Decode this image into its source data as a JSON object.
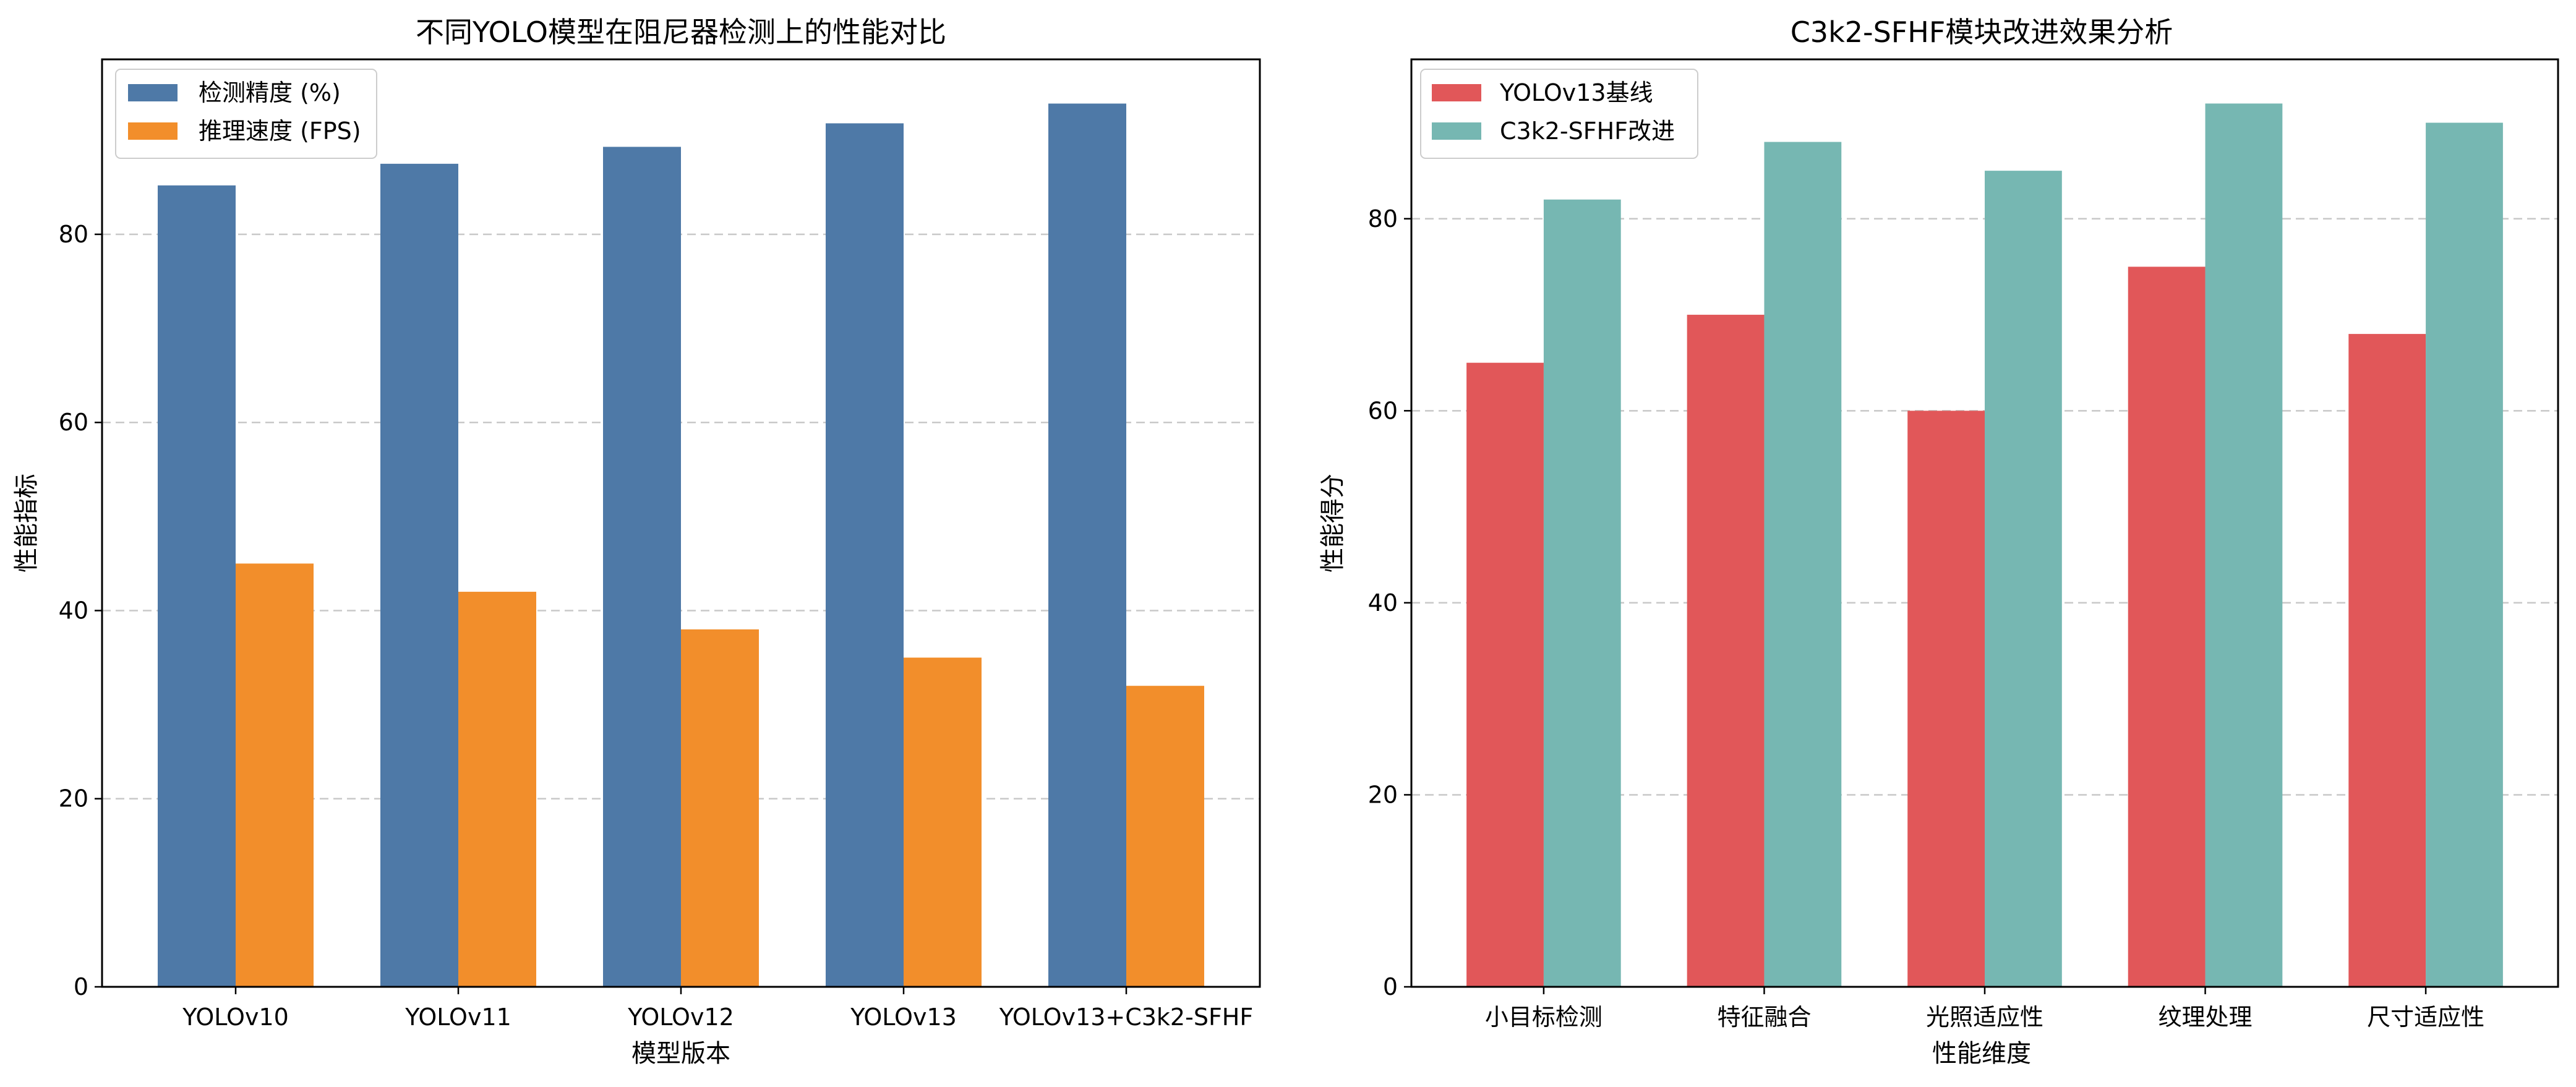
{
  "chart_data": [
    {
      "type": "bar",
      "title": "不同YOLO模型在阻尼器检测上的性能对比",
      "xlabel": "模型版本",
      "ylabel": "性能指标",
      "categories": [
        "YOLOv10",
        "YOLOv11",
        "YOLOv12",
        "YOLOv13",
        "YOLOv13+C3k2-SFHF"
      ],
      "series": [
        {
          "name": "检测精度 (%)",
          "color": "#4e79a7",
          "values": [
            85.2,
            87.5,
            89.3,
            91.8,
            93.9
          ]
        },
        {
          "name": "推理速度 (FPS)",
          "color": "#f28e2b",
          "values": [
            45,
            42,
            38,
            35,
            32
          ]
        }
      ],
      "ylim": [
        0,
        98.6
      ],
      "yticks": [
        0,
        20,
        40,
        60,
        80
      ],
      "grid": "y-dashed",
      "legend": "top-left"
    },
    {
      "type": "bar",
      "title": "C3k2-SFHF模块改进效果分析",
      "xlabel": "性能维度",
      "ylabel": "性能得分",
      "categories": [
        "小目标检测",
        "特征融合",
        "光照适应性",
        "纹理处理",
        "尺寸适应性"
      ],
      "series": [
        {
          "name": "YOLOv13基线",
          "color": "#e15759",
          "values": [
            65,
            70,
            60,
            75,
            68
          ]
        },
        {
          "name": "C3k2-SFHF改进",
          "color": "#76b7b2",
          "values": [
            82,
            88,
            85,
            92,
            90
          ]
        }
      ],
      "ylim": [
        0,
        96.6
      ],
      "yticks": [
        0,
        20,
        40,
        60,
        80
      ],
      "grid": "y-dashed",
      "legend": "top-left"
    }
  ]
}
